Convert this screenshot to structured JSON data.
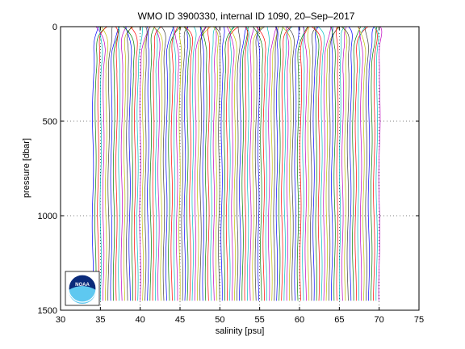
{
  "chart_data": {
    "type": "line",
    "title": "WMO ID 3900330, internal ID 1090, 20–Sep–2017",
    "xlabel": "salinity [psu]",
    "ylabel": "pressure [dbar]",
    "xlim": [
      30,
      75
    ],
    "ylim": [
      1500,
      0
    ],
    "y_axis_inverted": true,
    "xticks": [
      "30",
      "35",
      "40",
      "45",
      "50",
      "55",
      "60",
      "65",
      "70",
      "75"
    ],
    "yticks": [
      "0",
      "500",
      "1000",
      "1500"
    ],
    "xtick_values": [
      30,
      35,
      40,
      45,
      50,
      55,
      60,
      65,
      70,
      75
    ],
    "ytick_values": [
      0,
      500,
      1000,
      1500
    ],
    "grid": "dotted",
    "series_description": "stacked salinity profiles, each offset to the right",
    "profile_count": 110,
    "profile_offset_psu": 0.33,
    "first_profile_surface_salinity": 34.3,
    "profile_color_cycle": [
      "#0000ff",
      "#008000",
      "#ff0000",
      "#00bfbf",
      "#bf00bf",
      "#bfbf00",
      "#404040"
    ],
    "logo": {
      "name": "noaa-logo",
      "text": "NOAA"
    }
  }
}
